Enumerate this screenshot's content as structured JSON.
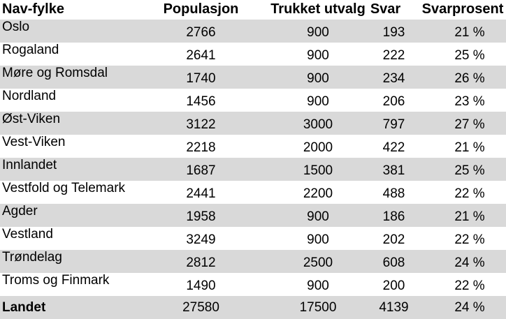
{
  "table": {
    "columns": [
      "Nav-fylke",
      "Populasjon",
      "Trukket utvalg",
      "Svar",
      "Svarprosent"
    ],
    "rows": [
      {
        "fylke": "Oslo",
        "populasjon": "2766",
        "trukket_utvalg": "900",
        "svar": "193",
        "svarprosent": "21 %"
      },
      {
        "fylke": "Rogaland",
        "populasjon": "2641",
        "trukket_utvalg": "900",
        "svar": "222",
        "svarprosent": "25 %"
      },
      {
        "fylke": "Møre og Romsdal",
        "populasjon": "1740",
        "trukket_utvalg": "900",
        "svar": "234",
        "svarprosent": "26 %"
      },
      {
        "fylke": "Nordland",
        "populasjon": "1456",
        "trukket_utvalg": "900",
        "svar": "206",
        "svarprosent": "23 %"
      },
      {
        "fylke": "Øst-Viken",
        "populasjon": "3122",
        "trukket_utvalg": "3000",
        "svar": "797",
        "svarprosent": "27 %"
      },
      {
        "fylke": "Vest-Viken",
        "populasjon": "2218",
        "trukket_utvalg": "2000",
        "svar": "422",
        "svarprosent": "21 %"
      },
      {
        "fylke": "Innlandet",
        "populasjon": "1687",
        "trukket_utvalg": "1500",
        "svar": "381",
        "svarprosent": "25 %"
      },
      {
        "fylke": "Vestfold og Telemark",
        "populasjon": "2441",
        "trukket_utvalg": "2200",
        "svar": "488",
        "svarprosent": "22 %"
      },
      {
        "fylke": "Agder",
        "populasjon": "1958",
        "trukket_utvalg": "900",
        "svar": "186",
        "svarprosent": "21 %"
      },
      {
        "fylke": "Vestland",
        "populasjon": "3249",
        "trukket_utvalg": "900",
        "svar": "202",
        "svarprosent": "22 %"
      },
      {
        "fylke": "Trøndelag",
        "populasjon": "2812",
        "trukket_utvalg": "2500",
        "svar": "608",
        "svarprosent": "24 %"
      },
      {
        "fylke": "Troms og Finmark",
        "populasjon": "1490",
        "trukket_utvalg": "900",
        "svar": "200",
        "svarprosent": "22 %"
      }
    ],
    "total": {
      "fylke": "Landet",
      "populasjon": "27580",
      "trukket_utvalg": "17500",
      "svar": "4139",
      "svarprosent": "24 %"
    }
  },
  "colors": {
    "stripe": "#d9d9d9",
    "background": "#ffffff",
    "text": "#000000"
  }
}
